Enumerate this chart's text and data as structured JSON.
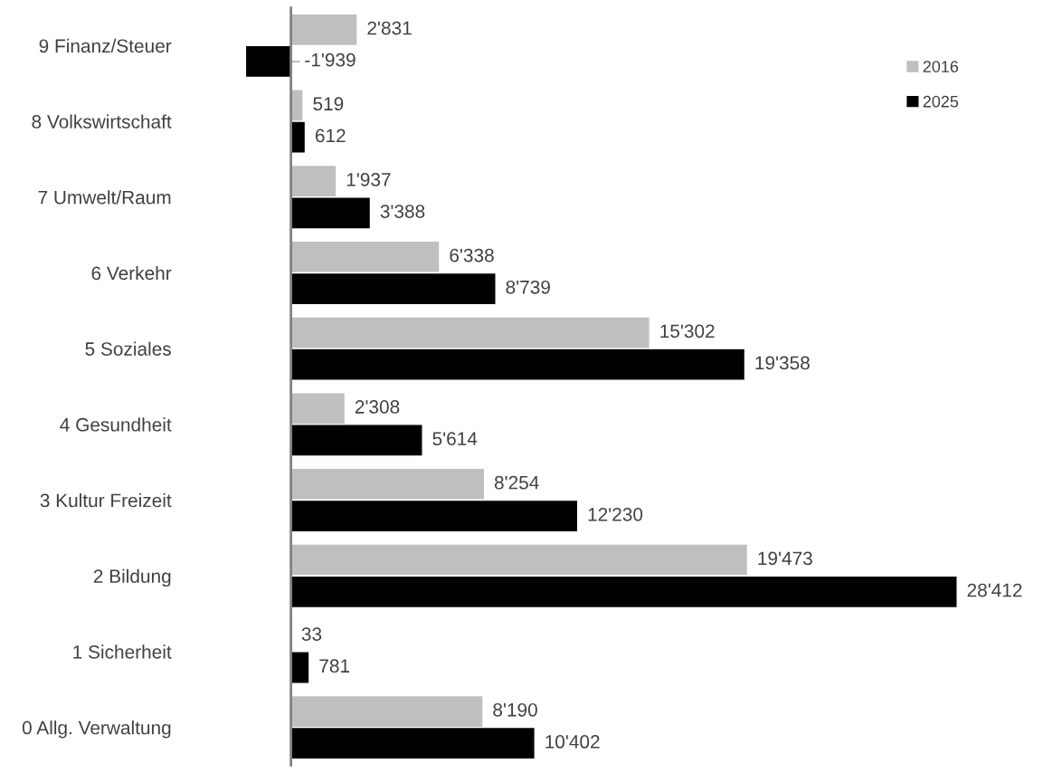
{
  "chart_data": {
    "type": "bar",
    "orientation": "horizontal",
    "categories": [
      "9 Finanz/Steuer",
      "8 Volkswirtschaft",
      "7 Umwelt/Raum",
      "6 Verkehr",
      "5 Soziales",
      "4 Gesundheit",
      "3 Kultur Freizeit",
      "2 Bildung",
      "1 Sicherheit",
      "0 Allg. Verwaltung"
    ],
    "series": [
      {
        "name": "2016",
        "color": "#bfbfbf",
        "values": [
          2831,
          519,
          1937,
          6338,
          15302,
          2308,
          8254,
          19473,
          33,
          8190
        ],
        "value_labels": [
          "2'831",
          "519",
          "1'937",
          "6'338",
          "15'302",
          "2'308",
          "8'254",
          "19'473",
          "33",
          "8'190"
        ]
      },
      {
        "name": "2025",
        "color": "#000000",
        "values": [
          -1939,
          612,
          3388,
          8739,
          19358,
          5614,
          12230,
          28412,
          781,
          10402
        ],
        "value_labels": [
          "-1'939",
          "612",
          "3'388",
          "8'739",
          "19'358",
          "5'614",
          "12'230",
          "28'412",
          "781",
          "10'402"
        ]
      }
    ],
    "tick_labels": "y",
    "legend": "top right",
    "grid": false
  }
}
